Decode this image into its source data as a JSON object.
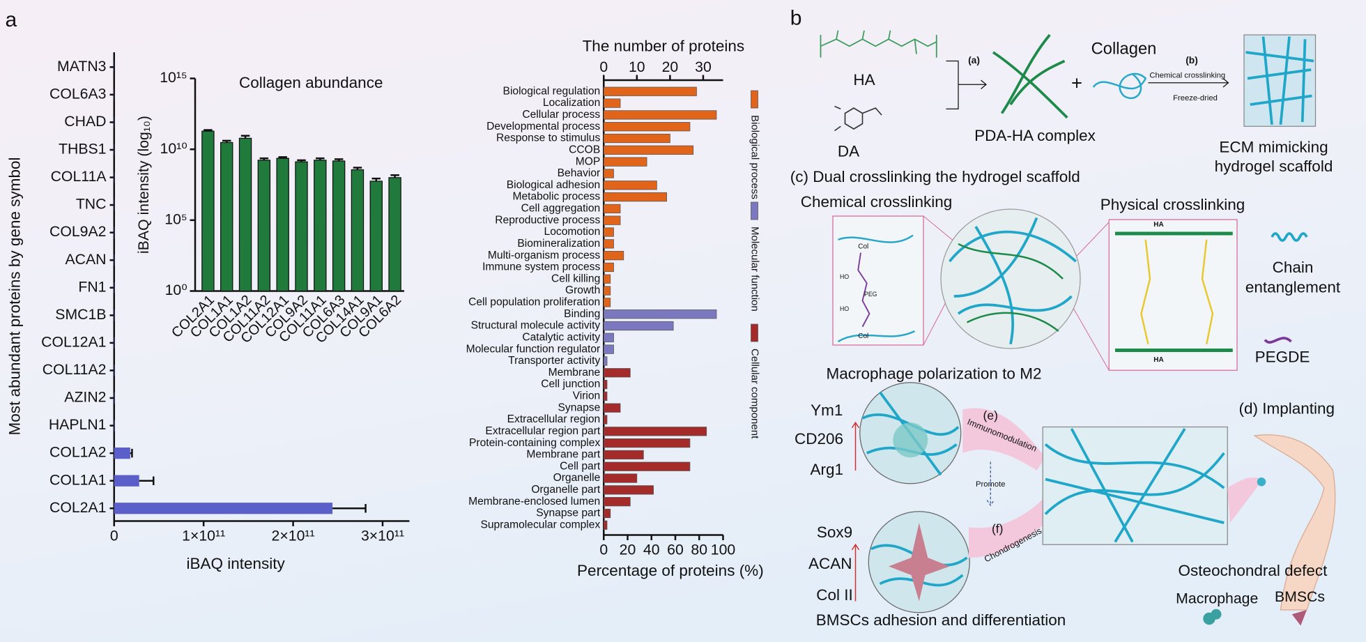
{
  "figure": {
    "panel_label": "a"
  },
  "chart_data": [
    {
      "type": "bar",
      "orientation": "horizontal",
      "x_label": "iBAQ intensity",
      "y_label": "Most abundant proteins by gene symbol",
      "categories": [
        "MATN3",
        "COL6A3",
        "CHAD",
        "THBS1",
        "COL11A",
        "TNC",
        "COL9A2",
        "ACAN",
        "FN1",
        "SMC1B",
        "COL12A1",
        "COL11A2",
        "AZIN2",
        "HAPLN1",
        "COL1A2",
        "COL1A1",
        "COL2A1"
      ],
      "values": [
        200000000,
        250000000,
        300000000,
        300000000,
        350000000,
        350000000,
        400000000,
        400000000,
        450000000,
        450000000,
        500000000,
        500000000,
        550000000,
        600000000,
        18000000000,
        28000000000,
        244000000000
      ],
      "errors": [
        null,
        null,
        null,
        null,
        null,
        null,
        null,
        null,
        null,
        null,
        null,
        null,
        null,
        null,
        2000000000,
        16000000000,
        37000000000
      ],
      "color": "#5b5fc9",
      "xlim": [
        0,
        330000000000
      ],
      "xticks": [
        0,
        {
          "value": 100000000000,
          "label": "1×10¹¹"
        },
        {
          "value": 200000000000,
          "label": "2×10¹¹"
        },
        {
          "value": 300000000000,
          "label": "3×10¹¹"
        }
      ]
    },
    {
      "type": "bar",
      "orientation": "vertical",
      "log_scale": true,
      "title": "Collagen abundance",
      "y_label": "iBAQ intensity (log₁₀)",
      "categories": [
        "COL2A1",
        "COL1A1",
        "COL1A2",
        "COL11A2",
        "COL12A1",
        "COL9A2",
        "COL11A1",
        "COL6A3",
        "COL14A1",
        "COL9A1",
        "COL6A2"
      ],
      "values": [
        190000000000,
        30000000000,
        60000000000,
        1700000000,
        2300000000,
        1300000000,
        1700000000,
        1500000000,
        360000000,
        56000000,
        100000000
      ],
      "errors": [
        40000000000,
        10000000000,
        30000000000,
        600000000,
        500000000,
        400000000,
        600000000,
        500000000,
        150000000,
        30000000,
        50000000
      ],
      "color": "#1f7a3c",
      "ylim": [
        1,
        1000000000000000
      ],
      "yticks": [
        {
          "value": 1,
          "label": "10⁰"
        },
        {
          "value": 100000,
          "label": "10⁵"
        },
        {
          "value": 10000000000,
          "label": "10¹⁰"
        },
        {
          "value": 1000000000000000,
          "label": "10¹⁵"
        }
      ]
    },
    {
      "type": "bar",
      "orientation": "horizontal",
      "x_label": "The number of proteins",
      "x2_label": "Percentage of proteins (%)",
      "categories": [
        "Biological regulation",
        "Localization",
        "Cellular process",
        "Developmental process",
        "Response to stimulus",
        "CCOB",
        "MOP",
        "Behavior",
        "Biological adhesion",
        "Metabolic process",
        "Cell aggregation",
        "Reproductive process",
        "Locomotion",
        "Biomineralization",
        "Multi-organism process",
        "Immune system process",
        "Cell killing",
        "Growth",
        "Cell population proliferation",
        "Binding",
        "Structural molecule activity",
        "Catalytic activity",
        "Molecular function regulator",
        "Transporter activity",
        "Membrane",
        "Cell junction",
        "Virion",
        "Synapse",
        "Extracellular region",
        "Extracellular region part",
        "Protein-containing complex",
        "Membrane part",
        "Cell part",
        "Organelle",
        "Organelle part",
        "Membrane-enclosed lumen",
        "Synapse part",
        "Supramolecular complex"
      ],
      "series": [
        {
          "name": "Biological process",
          "color": "#e0651a",
          "values": [
            28,
            5,
            34,
            26,
            20,
            27,
            13,
            3,
            16,
            19,
            5,
            5,
            3,
            3,
            6,
            3,
            2,
            2,
            2,
            null,
            null,
            null,
            null,
            null,
            null,
            null,
            null,
            null,
            null,
            null,
            null,
            null,
            null,
            null,
            null,
            null,
            null,
            null
          ]
        },
        {
          "name": "Molecular function",
          "color": "#7b78c0",
          "values": [
            null,
            null,
            null,
            null,
            null,
            null,
            null,
            null,
            null,
            null,
            null,
            null,
            null,
            null,
            null,
            null,
            null,
            null,
            null,
            34,
            21,
            3,
            3,
            1,
            null,
            null,
            null,
            null,
            null,
            null,
            null,
            null,
            null,
            null,
            null,
            null,
            null,
            null
          ]
        },
        {
          "name": "Cellular component",
          "color": "#a52a2a",
          "values": [
            null,
            null,
            null,
            null,
            null,
            null,
            null,
            null,
            null,
            null,
            null,
            null,
            null,
            null,
            null,
            null,
            null,
            null,
            null,
            null,
            null,
            null,
            null,
            null,
            8,
            1,
            1,
            5,
            1,
            31,
            26,
            12,
            26,
            10,
            15,
            8,
            2,
            1
          ]
        }
      ],
      "xlim": [
        0,
        36
      ],
      "xticks": [
        0,
        10,
        20,
        30
      ],
      "x2lim": [
        0,
        100
      ],
      "x2ticks": [
        0,
        20,
        40,
        60,
        80,
        100
      ]
    }
  ],
  "diagram": {
    "panel_label": "b",
    "synthesis": {
      "ha": "HA",
      "da": "DA",
      "step_a": "(a)",
      "collagen": "Collagen",
      "plus": "+",
      "step_b": "(b)",
      "step_b_top": "Chemical crosslinking",
      "step_b_bottom": "Freeze-dried",
      "complex": "PDA-HA complex",
      "scaffold": [
        "ECM mimicking",
        "hydrogel scaffold"
      ]
    },
    "crosslinking": {
      "title": "(c) Dual crosslinking the hydrogel scaffold",
      "chemical": "Chemical crosslinking",
      "physical": "Physical crosslinking",
      "chemical_labels": [
        "Col",
        "HO",
        "PEG",
        "HO",
        "Col"
      ],
      "physical_labels": [
        "HA",
        "HA"
      ],
      "legend": {
        "entanglement": [
          "Chain",
          "entanglement"
        ],
        "pegde": "PEGDE"
      }
    },
    "macrophage": {
      "title": "Macrophage polarization to M2",
      "markers": [
        "Ym1",
        "CD206",
        "Arg1"
      ],
      "step": "(e)",
      "arrow": "Immunomodulation",
      "promote": "Promote"
    },
    "implant": {
      "title": "(d) Implanting",
      "defect": "Osteochondral defect",
      "macrophage": "Macrophage",
      "bmsc": "BMSCs"
    },
    "bmsc": {
      "markers": [
        "Sox9",
        "ACAN",
        "Col II"
      ],
      "step": "(f)",
      "arrow": "Chondrogenesis",
      "caption": "BMSCs adhesion and differentiation"
    }
  }
}
